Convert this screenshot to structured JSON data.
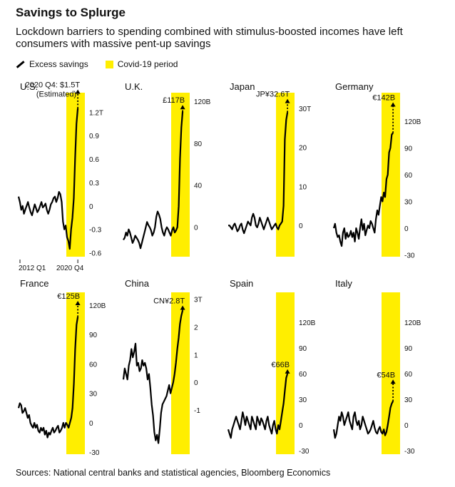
{
  "title": "Savings to Splurge",
  "subtitle": "Lockdown barriers to spending combined with stimulus-boosted incomes have left consumers with massive pent-up savings",
  "legend": {
    "line": "Excess savings",
    "box": "Covid-19 period"
  },
  "source": "Sources: National central banks and statistical agencies, Bloomberg Economics",
  "colors": {
    "line": "#000000",
    "covid": "#ffee00",
    "axis_text": "#111111"
  },
  "chart_data": [
    {
      "type": "line",
      "title": "U.S.",
      "ylim": [
        -0.65,
        1.45
      ],
      "yticks": [
        -0.6,
        -0.3,
        0,
        0.3,
        0.6,
        0.9,
        1.2
      ],
      "ytick_labels": [
        "-0.6",
        "-0.3",
        "0",
        "0.3",
        "0.6",
        "0.9",
        "1.2T"
      ],
      "ytick_unit": "",
      "xtick_labels": [
        "2012 Q1",
        "2020 Q4"
      ],
      "values": [
        0.12,
        0.05,
        -0.05,
        0.0,
        -0.1,
        -0.05,
        0.0,
        0.05,
        -0.02,
        -0.08,
        -0.12,
        -0.05,
        0.02,
        -0.03,
        -0.08,
        -0.05,
        0.0,
        0.05,
        -0.02,
        0.0,
        0.03,
        -0.05,
        -0.1,
        -0.05,
        0.02,
        0.05,
        0.1,
        0.12,
        0.05,
        0.1,
        0.18,
        0.15,
        0.05,
        -0.2,
        -0.3,
        -0.25,
        -0.4,
        -0.45,
        -0.55,
        -0.3,
        -0.15,
        0.1,
        0.6,
        1.05,
        1.25
      ],
      "annotation": {
        "text": "2020 Q4: $1.5T",
        "text2": "(Estimated)",
        "value": 1.5
      }
    },
    {
      "type": "line",
      "title": "U.K.",
      "ylim": [
        -28,
        128
      ],
      "yticks": [
        0,
        40,
        80
      ],
      "ytick_labels": [
        "0",
        "40",
        "80"
      ],
      "ytick_unit": "120B",
      "values": [
        -12,
        -10,
        -5,
        -8,
        -2,
        -5,
        -10,
        -15,
        -12,
        -8,
        -10,
        -12,
        -15,
        -20,
        -15,
        -10,
        -5,
        0,
        5,
        2,
        0,
        -3,
        -8,
        -5,
        0,
        10,
        15,
        12,
        8,
        0,
        -5,
        -8,
        -3,
        0,
        -2,
        -5,
        -8,
        -3,
        0,
        -5,
        -3,
        0,
        20,
        65,
        95,
        110
      ],
      "annotation": {
        "text": "£117B",
        "value": 117
      }
    },
    {
      "type": "line",
      "title": "Japan",
      "ylim": [
        -8,
        34
      ],
      "yticks": [
        0,
        10,
        20
      ],
      "ytick_labels": [
        "0",
        "10",
        "20"
      ],
      "ytick_unit": "30T",
      "values": [
        0,
        0,
        -0.5,
        -1,
        0,
        0.5,
        -0.5,
        -1.5,
        -1,
        0,
        0.5,
        -1,
        -2,
        -1,
        0,
        1,
        0.5,
        0,
        2,
        3,
        2,
        0,
        -0.5,
        0.5,
        2,
        1,
        0,
        -1,
        0,
        1,
        2,
        1,
        0,
        -1,
        -0.5,
        0,
        0.5,
        -0.5,
        -1,
        0,
        0.5,
        1,
        5,
        22,
        27,
        29
      ],
      "annotation": {
        "text": "JP¥32.6T",
        "value": 32.6
      }
    },
    {
      "type": "line",
      "title": "Germany",
      "ylim": [
        -32,
        152
      ],
      "yticks": [
        -30,
        0,
        30,
        60,
        90
      ],
      "ytick_labels": [
        "-30",
        "0",
        "30",
        "60",
        "90"
      ],
      "ytick_unit": "120B",
      "values": [
        0,
        5,
        -5,
        -10,
        -8,
        -15,
        -20,
        -5,
        0,
        -12,
        -5,
        -10,
        -8,
        -3,
        -10,
        -5,
        -15,
        0,
        -5,
        -12,
        0,
        10,
        -2,
        5,
        -8,
        -2,
        3,
        0,
        8,
        5,
        0,
        -5,
        10,
        20,
        15,
        25,
        35,
        30,
        40,
        35,
        55,
        60,
        85,
        90,
        105,
        107
      ],
      "annotation": {
        "text": "€142B",
        "value": 142
      }
    },
    {
      "type": "line",
      "title": "France",
      "ylim": [
        -32,
        133
      ],
      "yticks": [
        -30,
        0,
        30,
        60,
        90
      ],
      "ytick_labels": [
        "-30",
        "0",
        "30",
        "60",
        "90"
      ],
      "ytick_unit": "120B",
      "values": [
        15,
        20,
        18,
        10,
        12,
        15,
        10,
        5,
        8,
        0,
        -3,
        -5,
        0,
        -5,
        -2,
        -8,
        -10,
        -5,
        -8,
        -5,
        -12,
        -8,
        -15,
        -10,
        -12,
        -8,
        -5,
        -10,
        -8,
        -5,
        -3,
        -10,
        -8,
        -5,
        0,
        -5,
        0,
        -2,
        -5,
        0,
        5,
        15,
        40,
        75,
        100,
        108
      ],
      "annotation": {
        "text": "€125B",
        "value": 125
      }
    },
    {
      "type": "line",
      "title": "China",
      "ylim": [
        -2.6,
        3.25
      ],
      "yticks": [
        -1,
        0,
        1,
        2
      ],
      "ytick_labels": [
        "-1",
        "0",
        "1",
        "2"
      ],
      "ytick_unit": "3T",
      "values": [
        0.1,
        0.5,
        0.3,
        0.1,
        0.6,
        0.8,
        1.2,
        0.9,
        1.1,
        1.4,
        0.6,
        0.7,
        0.4,
        0.5,
        0.8,
        0.6,
        0.7,
        0.5,
        0.1,
        0.3,
        -0.2,
        -0.8,
        -1.2,
        -1.8,
        -2.1,
        -1.9,
        -2.2,
        -1.7,
        -1.1,
        -0.8,
        -0.7,
        -0.6,
        -0.5,
        -0.3,
        -0.1,
        -0.4,
        -0.2,
        0.0,
        0.3,
        0.7,
        1.2,
        1.6,
        2.1,
        2.4,
        2.6
      ],
      "annotation": {
        "text": "CN¥2.8T",
        "value": 2.8
      }
    },
    {
      "type": "line",
      "title": "Spain",
      "ylim": [
        -34,
        155
      ],
      "yticks": [
        -30,
        0,
        30,
        60,
        90
      ],
      "ytick_labels": [
        "-30",
        "0",
        "30",
        "60",
        "90"
      ],
      "ytick_unit": "120B",
      "values": [
        -5,
        -10,
        -15,
        -5,
        0,
        5,
        10,
        5,
        0,
        -5,
        5,
        15,
        8,
        0,
        10,
        5,
        0,
        -5,
        10,
        5,
        0,
        -5,
        10,
        5,
        0,
        8,
        5,
        0,
        -5,
        5,
        10,
        0,
        -5,
        -10,
        0,
        5,
        -5,
        -10,
        0,
        -5,
        5,
        15,
        25,
        40,
        55,
        60
      ],
      "annotation": {
        "text": "€66B",
        "value": 66
      }
    },
    {
      "type": "line",
      "title": "Italy",
      "ylim": [
        -34,
        155
      ],
      "yticks": [
        -30,
        0,
        30,
        60,
        90
      ],
      "ytick_labels": [
        "-30",
        "0",
        "30",
        "60",
        "90"
      ],
      "ytick_unit": "120B",
      "values": [
        -5,
        -15,
        -10,
        0,
        10,
        5,
        15,
        10,
        0,
        5,
        10,
        15,
        5,
        0,
        -5,
        10,
        15,
        5,
        0,
        5,
        -5,
        0,
        10,
        5,
        0,
        -5,
        -10,
        -8,
        -5,
        0,
        5,
        -3,
        -8,
        -10,
        -5,
        -2,
        -8,
        -10,
        -5,
        -12,
        -8,
        0,
        10,
        20,
        25,
        28
      ],
      "annotation": {
        "text": "€54B",
        "value": 54
      }
    }
  ]
}
